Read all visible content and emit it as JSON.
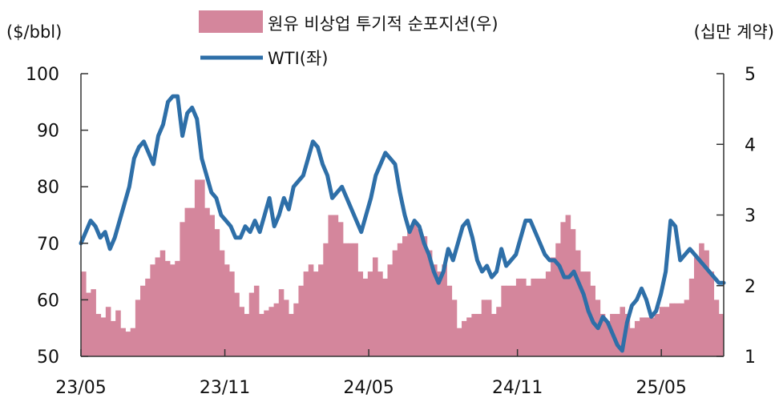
{
  "chart_data": {
    "type": "bar-line-combo",
    "left_axis_unit": "($/bbl)",
    "right_axis_unit": "(십만 계약)",
    "left_ylim": [
      50,
      100
    ],
    "left_yticks": [
      "50",
      "60",
      "70",
      "80",
      "90",
      "100"
    ],
    "right_ylim": [
      1,
      5
    ],
    "right_yticks": [
      "1",
      "2",
      "3",
      "4",
      "5"
    ],
    "xlim": [
      0,
      134
    ],
    "x_ticks": [
      {
        "pos": 0,
        "label": "23/05"
      },
      {
        "pos": 30,
        "label": "23/11"
      },
      {
        "pos": 60,
        "label": "24/05"
      },
      {
        "pos": 91,
        "label": "24/11"
      },
      {
        "pos": 121,
        "label": "25/05"
      }
    ],
    "legend": [
      {
        "label": "원유 비상업 투기적 순포지션(우)",
        "color": "#d4869c",
        "kind": "bar"
      },
      {
        "label": "WTI(좌)",
        "color": "#2e6fa8",
        "kind": "line"
      }
    ],
    "series": [
      {
        "name": "원유 비상업 투기적 순포지션(우)",
        "axis": "right",
        "color": "#d4869c",
        "values": [
          2.2,
          1.9,
          1.95,
          1.6,
          1.55,
          1.7,
          1.5,
          1.65,
          1.4,
          1.35,
          1.4,
          1.8,
          2.0,
          2.1,
          2.3,
          2.4,
          2.5,
          2.35,
          2.3,
          2.35,
          2.9,
          3.1,
          3.1,
          3.5,
          3.5,
          3.1,
          3.0,
          2.8,
          2.5,
          2.3,
          2.2,
          1.9,
          1.7,
          1.6,
          1.9,
          2.0,
          1.6,
          1.65,
          1.7,
          1.75,
          1.95,
          1.8,
          1.6,
          1.75,
          2.0,
          2.2,
          2.3,
          2.2,
          2.3,
          2.6,
          3.0,
          3.0,
          2.9,
          2.6,
          2.6,
          2.6,
          2.2,
          2.1,
          2.2,
          2.4,
          2.2,
          2.1,
          2.3,
          2.5,
          2.6,
          2.7,
          2.8,
          2.9,
          2.8,
          2.7,
          2.5,
          2.3,
          2.2,
          2.3,
          2.0,
          1.8,
          1.4,
          1.5,
          1.55,
          1.6,
          1.6,
          1.8,
          1.8,
          1.6,
          1.7,
          2.0,
          2.0,
          2.0,
          2.1,
          2.1,
          2.0,
          2.1,
          2.1,
          2.1,
          2.2,
          2.4,
          2.6,
          2.9,
          3.0,
          2.8,
          2.5,
          2.2,
          2.2,
          2.0,
          1.8,
          1.6,
          1.5,
          1.6,
          1.6,
          1.7,
          1.6,
          1.4,
          1.5,
          1.55,
          1.55,
          1.55,
          1.6,
          1.7,
          1.7,
          1.75,
          1.75,
          1.75,
          1.8,
          2.1,
          2.4,
          2.6,
          2.5,
          2.2,
          1.8,
          1.6
        ]
      },
      {
        "name": "WTI(좌)",
        "axis": "left",
        "color": "#2e6fa8",
        "values": [
          70,
          72,
          74,
          73,
          71,
          72,
          69,
          71,
          74,
          77,
          80,
          85,
          87,
          88,
          86,
          84,
          89,
          91,
          95,
          96,
          96,
          89,
          93,
          94,
          92,
          85,
          82,
          79,
          78,
          75,
          74,
          73,
          71,
          71,
          73,
          72,
          74,
          72,
          75,
          78,
          73,
          75,
          78,
          76,
          80,
          81,
          82,
          85,
          88,
          87,
          84,
          82,
          78,
          79,
          80,
          78,
          76,
          74,
          72,
          75,
          78,
          82,
          84,
          86,
          85,
          84,
          79,
          75,
          72,
          74,
          73,
          70,
          68,
          65,
          63,
          65,
          69,
          67,
          70,
          73,
          74,
          71,
          67,
          65,
          66,
          64,
          65,
          69,
          66,
          67,
          68,
          71,
          74,
          74,
          72,
          70,
          68,
          67,
          67,
          66,
          64,
          64,
          65,
          63,
          61,
          58,
          56,
          55,
          57,
          56,
          54,
          52,
          51,
          56,
          59,
          60,
          62,
          60,
          57,
          58,
          61,
          65,
          74,
          73,
          67,
          68,
          69,
          68,
          67,
          66,
          65,
          64,
          63,
          63
        ]
      }
    ]
  }
}
